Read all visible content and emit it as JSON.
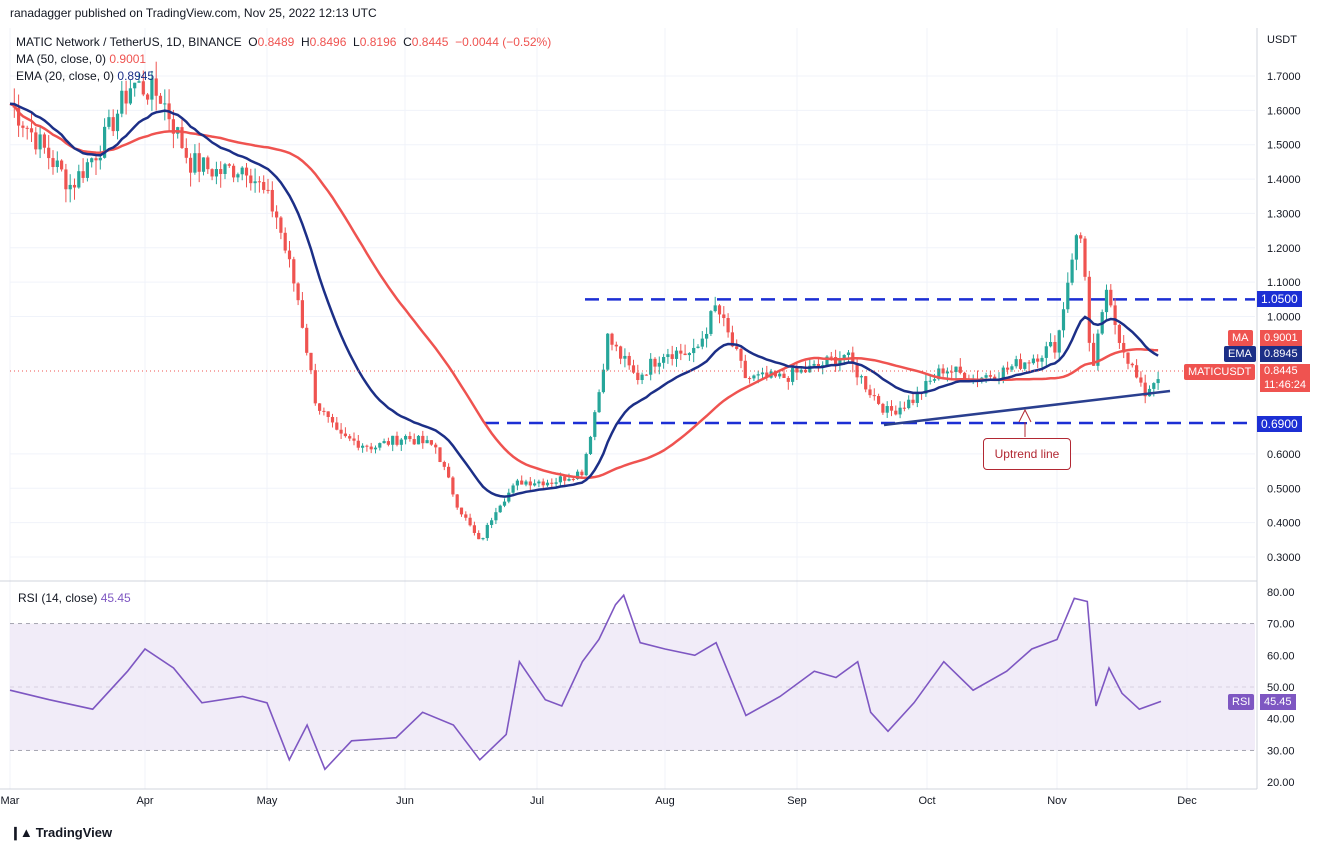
{
  "header": {
    "publisher_line": "ranadagger published on TradingView.com, Nov 25, 2022 12:13 UTC"
  },
  "legend": {
    "symbol": "MATIC Network / TetherUS, 1D, BINANCE",
    "o_label": "O",
    "o": "0.8489",
    "h_label": "H",
    "h": "0.8496",
    "l_label": "L",
    "l": "0.8196",
    "c_label": "C",
    "c": "0.8445",
    "change": "−0.0044 (−0.52%)",
    "ma_label": "MA (50, close, 0)",
    "ma_value": "0.9001",
    "ema_label": "EMA (20, close, 0)",
    "ema_value": "0.8945"
  },
  "rsi_legend": {
    "label": "RSI (14, close)",
    "value": "45.45"
  },
  "price_axis": {
    "currency": "USDT"
  },
  "annotation": {
    "uptrend": "Uptrend line"
  },
  "tags": {
    "resistance": "1.0500",
    "support": "0.6900",
    "ma_name": "MA",
    "ma": "0.9001",
    "ema_name": "EMA",
    "ema": "0.8945",
    "pair": "MATICUSDT",
    "price": "0.8445",
    "countdown": "11:46:24",
    "rsi_name": "RSI",
    "rsi": "45.45"
  },
  "footer": {
    "brand": "TradingView"
  },
  "colors": {
    "ma": "#ef5350",
    "ema": "#1c2f87",
    "up": "#26a69a",
    "down": "#ef5350",
    "level": "#1c2fd4",
    "rsi": "#7e57c2",
    "rsi_band": "#ede7f6"
  },
  "chart_data": [
    {
      "type": "candlestick",
      "title": "MATIC Network / TetherUS, 1D, BINANCE",
      "ylabel": "USDT",
      "ylim": [
        0.25,
        1.8
      ],
      "y_ticks": [
        "1.7000",
        "1.6000",
        "1.5000",
        "1.4000",
        "1.3000",
        "1.2000",
        "1.1000",
        "1.0000",
        "0.6000",
        "0.5000",
        "0.4000",
        "0.3000"
      ],
      "x_ticks": [
        "Mar",
        "Apr",
        "May",
        "Jun",
        "Jul",
        "Aug",
        "Sep",
        "Oct",
        "Nov",
        "Dec"
      ],
      "horizontal_levels": [
        1.05,
        0.69
      ],
      "trendline": {
        "name": "Uptrend line",
        "from": [
          "Sep 22",
          0.69
        ],
        "to": [
          "Nov 25",
          0.78
        ]
      },
      "series": [
        {
          "name": "MA (50, close, 0)",
          "last": 0.9001
        },
        {
          "name": "EMA (20, close, 0)",
          "last": 0.8945
        }
      ],
      "close_path": [
        [
          "Mar 1",
          1.62
        ],
        [
          "Mar 8",
          1.5
        ],
        [
          "Mar 15",
          1.38
        ],
        [
          "Mar 22",
          1.5
        ],
        [
          "Mar 29",
          1.68
        ],
        [
          "Apr 5",
          1.64
        ],
        [
          "Apr 12",
          1.45
        ],
        [
          "Apr 19",
          1.42
        ],
        [
          "Apr 26",
          1.44
        ],
        [
          "May 3",
          1.3
        ],
        [
          "May 8",
          1.05
        ],
        [
          "May 12",
          0.75
        ],
        [
          "May 17",
          0.65
        ],
        [
          "May 25",
          0.62
        ],
        [
          "Jun 1",
          0.65
        ],
        [
          "Jun 8",
          0.62
        ],
        [
          "Jun 13",
          0.45
        ],
        [
          "Jun 18",
          0.34
        ],
        [
          "Jun 22",
          0.45
        ],
        [
          "Jun 27",
          0.52
        ],
        [
          "Jul 5",
          0.52
        ],
        [
          "Jul 12",
          0.55
        ],
        [
          "Jul 16",
          0.78
        ],
        [
          "Jul 18",
          0.94
        ],
        [
          "Jul 25",
          0.82
        ],
        [
          "Aug 1",
          0.9
        ],
        [
          "Aug 8",
          0.89
        ],
        [
          "Aug 13",
          1.03
        ],
        [
          "Aug 20",
          0.82
        ],
        [
          "Aug 28",
          0.82
        ],
        [
          "Sep 5",
          0.85
        ],
        [
          "Sep 12",
          0.89
        ],
        [
          "Sep 18",
          0.78
        ],
        [
          "Sep 22",
          0.72
        ],
        [
          "Sep 28",
          0.76
        ],
        [
          "Oct 5",
          0.85
        ],
        [
          "Oct 12",
          0.82
        ],
        [
          "Oct 19",
          0.84
        ],
        [
          "Oct 26",
          0.88
        ],
        [
          "Nov 1",
          0.92
        ],
        [
          "Nov 5",
          1.22
        ],
        [
          "Nov 7",
          1.23
        ],
        [
          "Nov 9",
          0.8
        ],
        [
          "Nov 12",
          1.07
        ],
        [
          "Nov 16",
          0.92
        ],
        [
          "Nov 21",
          0.77
        ],
        [
          "Nov 25",
          0.8445
        ]
      ]
    },
    {
      "type": "line",
      "title": "RSI (14, close)",
      "ylim": [
        20,
        80
      ],
      "y_ticks": [
        "80.00",
        "70.00",
        "60.00",
        "50.00",
        "45.45",
        "40.00",
        "30.00",
        "20.00"
      ],
      "bands": [
        70,
        50,
        30
      ],
      "last": 45.45,
      "path": [
        [
          "Mar 1",
          49
        ],
        [
          "Mar 10",
          46
        ],
        [
          "Mar 20",
          43
        ],
        [
          "Mar 28",
          55
        ],
        [
          "Apr 1",
          62
        ],
        [
          "Apr 8",
          56
        ],
        [
          "Apr 15",
          45
        ],
        [
          "Apr 25",
          47
        ],
        [
          "May 1",
          45
        ],
        [
          "May 6",
          27
        ],
        [
          "May 10",
          38
        ],
        [
          "May 14",
          24
        ],
        [
          "May 20",
          33
        ],
        [
          "May 30",
          34
        ],
        [
          "Jun 5",
          42
        ],
        [
          "Jun 12",
          38
        ],
        [
          "Jun 18",
          27
        ],
        [
          "Jun 24",
          35
        ],
        [
          "Jun 27",
          58
        ],
        [
          "Jul 3",
          46
        ],
        [
          "Jul 7",
          44
        ],
        [
          "Jul 12",
          58
        ],
        [
          "Jul 16",
          65
        ],
        [
          "Jul 20",
          76
        ],
        [
          "Jul 22",
          79
        ],
        [
          "Jul 26",
          64
        ],
        [
          "Aug 1",
          62
        ],
        [
          "Aug 8",
          60
        ],
        [
          "Aug 13",
          64
        ],
        [
          "Aug 20",
          41
        ],
        [
          "Aug 28",
          47
        ],
        [
          "Sep 5",
          55
        ],
        [
          "Sep 10",
          53
        ],
        [
          "Sep 15",
          58
        ],
        [
          "Sep 18",
          42
        ],
        [
          "Sep 22",
          36
        ],
        [
          "Sep 28",
          45
        ],
        [
          "Oct 5",
          58
        ],
        [
          "Oct 12",
          49
        ],
        [
          "Oct 20",
          55
        ],
        [
          "Oct 26",
          62
        ],
        [
          "Nov 1",
          65
        ],
        [
          "Nov 5",
          78
        ],
        [
          "Nov 8",
          77
        ],
        [
          "Nov 10",
          44
        ],
        [
          "Nov 13",
          56
        ],
        [
          "Nov 16",
          48
        ],
        [
          "Nov 20",
          43
        ],
        [
          "Nov 25",
          45.45
        ]
      ]
    }
  ]
}
